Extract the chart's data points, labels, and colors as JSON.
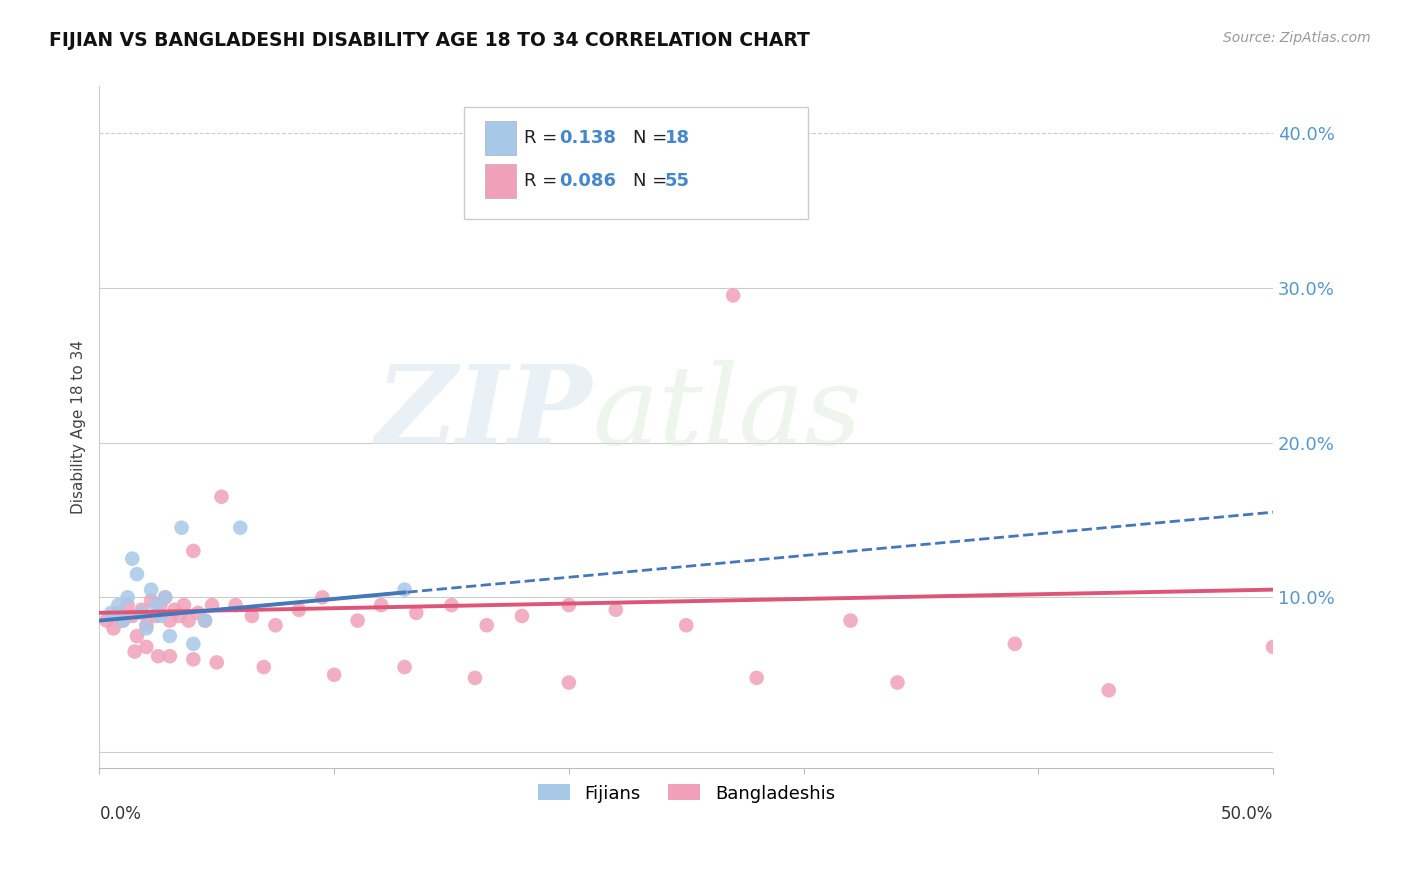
{
  "title": "FIJIAN VS BANGLADESHI DISABILITY AGE 18 TO 34 CORRELATION CHART",
  "source": "Source: ZipAtlas.com",
  "ylabel": "Disability Age 18 to 34",
  "yticks": [
    0.0,
    0.1,
    0.2,
    0.3,
    0.4
  ],
  "ytick_labels": [
    "",
    "10.0%",
    "20.0%",
    "30.0%",
    "40.0%"
  ],
  "xlim": [
    0.0,
    0.5
  ],
  "ylim": [
    -0.01,
    0.43
  ],
  "fijian_R": "0.138",
  "fijian_N": "18",
  "bangladeshi_R": "0.086",
  "bangladeshi_N": "55",
  "fijian_color": "#a8c8e8",
  "bangladeshi_color": "#f0a0b8",
  "fijian_line_color": "#4477bb",
  "bangladeshi_line_color": "#dd5577",
  "fijian_x": [
    0.005,
    0.008,
    0.01,
    0.012,
    0.014,
    0.016,
    0.018,
    0.02,
    0.022,
    0.024,
    0.026,
    0.028,
    0.03,
    0.035,
    0.04,
    0.045,
    0.06,
    0.13
  ],
  "fijian_y": [
    0.09,
    0.095,
    0.085,
    0.1,
    0.125,
    0.115,
    0.09,
    0.08,
    0.105,
    0.095,
    0.088,
    0.1,
    0.075,
    0.145,
    0.07,
    0.085,
    0.145,
    0.105
  ],
  "bangladeshi_x": [
    0.003,
    0.006,
    0.008,
    0.01,
    0.012,
    0.014,
    0.016,
    0.018,
    0.02,
    0.022,
    0.024,
    0.026,
    0.028,
    0.03,
    0.032,
    0.034,
    0.036,
    0.038,
    0.04,
    0.042,
    0.045,
    0.048,
    0.052,
    0.058,
    0.065,
    0.075,
    0.085,
    0.095,
    0.11,
    0.12,
    0.135,
    0.15,
    0.165,
    0.18,
    0.2,
    0.22,
    0.25,
    0.27,
    0.32,
    0.39,
    0.5,
    0.015,
    0.02,
    0.025,
    0.03,
    0.04,
    0.05,
    0.07,
    0.1,
    0.13,
    0.16,
    0.2,
    0.28,
    0.34,
    0.43
  ],
  "bangladeshi_y": [
    0.085,
    0.08,
    0.09,
    0.085,
    0.095,
    0.088,
    0.075,
    0.092,
    0.082,
    0.098,
    0.088,
    0.095,
    0.1,
    0.085,
    0.092,
    0.088,
    0.095,
    0.085,
    0.13,
    0.09,
    0.085,
    0.095,
    0.165,
    0.095,
    0.088,
    0.082,
    0.092,
    0.1,
    0.085,
    0.095,
    0.09,
    0.095,
    0.082,
    0.088,
    0.095,
    0.092,
    0.082,
    0.295,
    0.085,
    0.07,
    0.068,
    0.065,
    0.068,
    0.062,
    0.062,
    0.06,
    0.058,
    0.055,
    0.05,
    0.055,
    0.048,
    0.045,
    0.048,
    0.045,
    0.04
  ]
}
